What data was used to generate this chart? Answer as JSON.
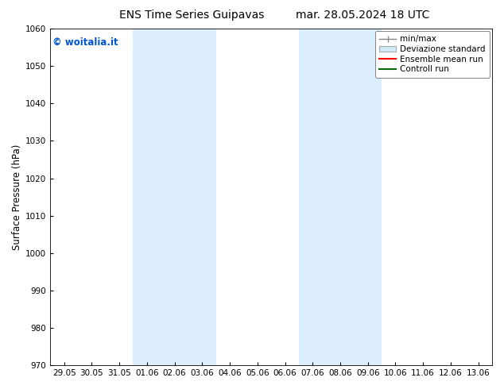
{
  "title": "ENS Time Series Guipavas",
  "title2": "mar. 28.05.2024 18 UTC",
  "ylabel": "Surface Pressure (hPa)",
  "ylim": [
    970,
    1060
  ],
  "yticks": [
    970,
    980,
    990,
    1000,
    1010,
    1020,
    1030,
    1040,
    1050,
    1060
  ],
  "xlabel_ticks": [
    "29.05",
    "30.05",
    "31.05",
    "01.06",
    "02.06",
    "03.06",
    "04.06",
    "05.06",
    "06.06",
    "07.06",
    "08.06",
    "09.06",
    "10.06",
    "11.06",
    "12.06",
    "13.06"
  ],
  "background_color": "#ffffff",
  "plot_bg_color": "#ffffff",
  "shaded_color": "#ddeeff",
  "watermark_text": "© woitalia.it",
  "watermark_color": "#0055cc",
  "legend_labels": [
    "min/max",
    "Deviazione standard",
    "Ensemble mean run",
    "Controll run"
  ],
  "legend_line_colors": [
    "#888888",
    "#bbbbbb",
    "#ff0000",
    "#006600"
  ],
  "tick_label_fontsize": 7.5,
  "title_fontsize": 10,
  "ylabel_fontsize": 8.5,
  "legend_fontsize": 7.5
}
